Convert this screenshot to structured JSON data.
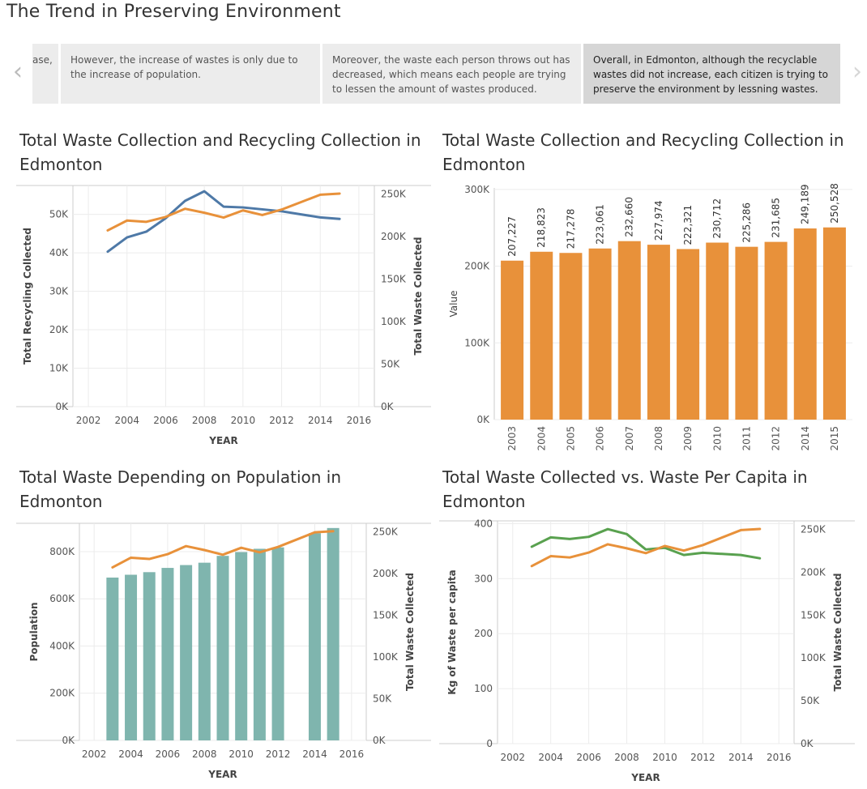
{
  "page": {
    "title": "The Trend in Preserving Environment"
  },
  "story": {
    "prev_arrow": "‹",
    "next_arrow": "›",
    "points": [
      "ase,",
      "However, the increase of wastes is only due to the increase of population.",
      "Moreover, the waste each person throws out has decreased, which means each people are trying to lessen the amount of wastes produced.",
      "Overall, in Edmonton, although the recyclable wastes did not increase, each citizen is trying to preserve the environment by lessning wastes."
    ]
  },
  "colors": {
    "orange": "#e8913a",
    "blue": "#4e79a7",
    "teal": "#7fb5ae",
    "green": "#59a14f",
    "grid": "#ececec",
    "axis": "#cccccc",
    "text": "#555555"
  },
  "chart_data": [
    {
      "type": "line",
      "title": "Total Waste Collection and Recycling Collection in Edmonton",
      "xlabel": "YEAR",
      "ylabel_left": "Total Recycling Collected",
      "ylabel_right": "Total Waste Collected",
      "x_ticks": [
        "2002",
        "2004",
        "2006",
        "2008",
        "2010",
        "2012",
        "2014",
        "2016"
      ],
      "y_ticks_left": [
        "0K",
        "10K",
        "20K",
        "30K",
        "40K",
        "50K"
      ],
      "y_ticks_right": [
        "0K",
        "50K",
        "100K",
        "150K",
        "200K",
        "250K"
      ],
      "ylim_left": [
        0,
        57500
      ],
      "ylim_right": [
        0,
        260000
      ],
      "xlim": [
        2001.2,
        2016.8
      ],
      "series": [
        {
          "axis": "left",
          "color": "blue",
          "x": [
            2003,
            2004,
            2005,
            2006,
            2007,
            2008,
            2009,
            2010,
            2011,
            2012,
            2013,
            2014,
            2015
          ],
          "values": [
            40300,
            44000,
            45500,
            49000,
            53500,
            56000,
            52000,
            51800,
            51300,
            50800,
            50000,
            49200,
            48800
          ]
        },
        {
          "axis": "right",
          "color": "orange",
          "x": [
            2003,
            2004,
            2005,
            2006,
            2007,
            2008,
            2009,
            2010,
            2011,
            2012,
            2014,
            2015
          ],
          "values": [
            207227,
            218823,
            217278,
            223061,
            232660,
            227974,
            222321,
            230712,
            225286,
            231685,
            249189,
            250528
          ]
        }
      ]
    },
    {
      "type": "bar",
      "title": "Total Waste Collection and Recycling Collection in Edmonton",
      "ylabel": "Value",
      "categories": [
        "2003",
        "2004",
        "2005",
        "2006",
        "2007",
        "2008",
        "2009",
        "2010",
        "2011",
        "2012",
        "2014",
        "2015"
      ],
      "values": [
        207227,
        218823,
        217278,
        223061,
        232660,
        227974,
        222321,
        230712,
        225286,
        231685,
        249189,
        250528
      ],
      "labels": [
        "207,227",
        "218,823",
        "217,278",
        "223,061",
        "232,660",
        "227,974",
        "222,321",
        "230,712",
        "225,286",
        "231,685",
        "249,189",
        "250,528"
      ],
      "y_ticks": [
        "0K",
        "100K",
        "200K",
        "300K"
      ],
      "ylim": [
        0,
        302000
      ]
    },
    {
      "type": "bar",
      "title": "Total Waste Depending on Population in Edmonton",
      "xlabel": "YEAR",
      "ylabel_left": "Population",
      "ylabel_right": "Total Waste Collected",
      "x_ticks": [
        "2002",
        "2004",
        "2006",
        "2008",
        "2010",
        "2012",
        "2014",
        "2016"
      ],
      "y_ticks_left": [
        "0K",
        "200K",
        "400K",
        "600K",
        "800K"
      ],
      "y_ticks_right": [
        "0K",
        "50K",
        "100K",
        "150K",
        "200K",
        "250K"
      ],
      "ylim_left": [
        0,
        920000
      ],
      "ylim_right": [
        0,
        260000
      ],
      "xlim": [
        2001.2,
        2016.8
      ],
      "bars": {
        "x": [
          2003,
          2004,
          2005,
          2006,
          2007,
          2008,
          2009,
          2010,
          2011,
          2012,
          2014,
          2015
        ],
        "values": [
          690000,
          702000,
          713000,
          731000,
          743000,
          753000,
          782000,
          798000,
          812000,
          818000,
          878000,
          900000
        ]
      },
      "line": {
        "x": [
          2003,
          2004,
          2005,
          2006,
          2007,
          2008,
          2009,
          2010,
          2011,
          2012,
          2014,
          2015
        ],
        "values": [
          207227,
          218823,
          217278,
          223061,
          232660,
          227974,
          222321,
          230712,
          225286,
          231685,
          249189,
          250528
        ]
      }
    },
    {
      "type": "line",
      "title": "Total Waste Collected vs. Waste Per Capita in Edmonton",
      "xlabel": "YEAR",
      "ylabel_left": "Kg of Waste per capita",
      "ylabel_right": "Total Waste Collected",
      "x_ticks": [
        "2002",
        "2004",
        "2006",
        "2008",
        "2010",
        "2012",
        "2014",
        "2016"
      ],
      "y_ticks_left": [
        "0",
        "100",
        "200",
        "300",
        "400"
      ],
      "y_ticks_right": [
        "0K",
        "50K",
        "100K",
        "150K",
        "200K",
        "250K"
      ],
      "ylim_left": [
        0,
        405
      ],
      "ylim_right": [
        0,
        260000
      ],
      "xlim": [
        2001.2,
        2016.8
      ],
      "series": [
        {
          "axis": "left",
          "color": "green",
          "x": [
            2003,
            2004,
            2005,
            2006,
            2007,
            2008,
            2009,
            2010,
            2011,
            2012,
            2014,
            2015
          ],
          "values": [
            358,
            375,
            372,
            376,
            390,
            381,
            353,
            356,
            343,
            347,
            343,
            337
          ]
        },
        {
          "axis": "right",
          "color": "orange",
          "x": [
            2003,
            2004,
            2005,
            2006,
            2007,
            2008,
            2009,
            2010,
            2011,
            2012,
            2014,
            2015
          ],
          "values": [
            207227,
            218823,
            217278,
            223061,
            232660,
            227974,
            222321,
            230712,
            225286,
            231685,
            249189,
            250528
          ]
        }
      ]
    }
  ]
}
